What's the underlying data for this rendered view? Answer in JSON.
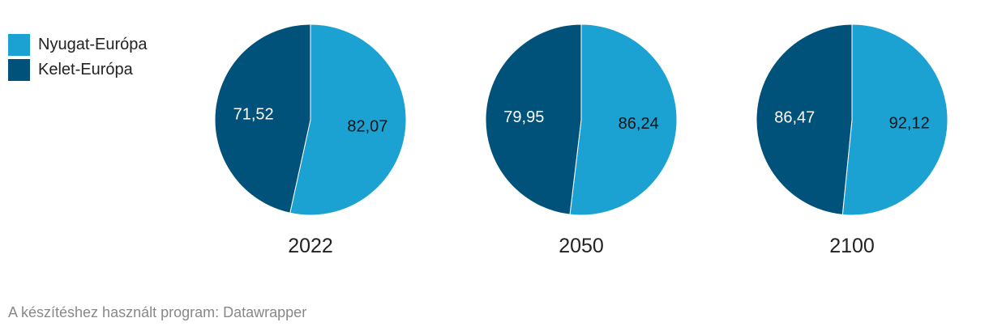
{
  "legend": {
    "items": [
      {
        "label": "Nyugat-Európa",
        "color": "#1ba2d2"
      },
      {
        "label": "Kelet-Európa",
        "color": "#01527b"
      }
    ]
  },
  "chart_data": [
    {
      "type": "pie",
      "title": "2022",
      "slices": [
        {
          "name": "Nyugat-Európa",
          "value": 82.07,
          "label": "82,07",
          "color": "#1ba2d2"
        },
        {
          "name": "Kelet-Európa",
          "value": 71.52,
          "label": "71,52",
          "color": "#01527b"
        }
      ]
    },
    {
      "type": "pie",
      "title": "2050",
      "slices": [
        {
          "name": "Nyugat-Európa",
          "value": 86.24,
          "label": "86,24",
          "color": "#1ba2d2"
        },
        {
          "name": "Kelet-Európa",
          "value": 79.95,
          "label": "79,95",
          "color": "#01527b"
        }
      ]
    },
    {
      "type": "pie",
      "title": "2100",
      "slices": [
        {
          "name": "Nyugat-Európa",
          "value": 92.12,
          "label": "92,12",
          "color": "#1ba2d2"
        },
        {
          "name": "Kelet-Európa",
          "value": 86.47,
          "label": "86,47",
          "color": "#01527b"
        }
      ]
    }
  ],
  "footer": {
    "text": "A készítéshez használt program: Datawrapper"
  }
}
